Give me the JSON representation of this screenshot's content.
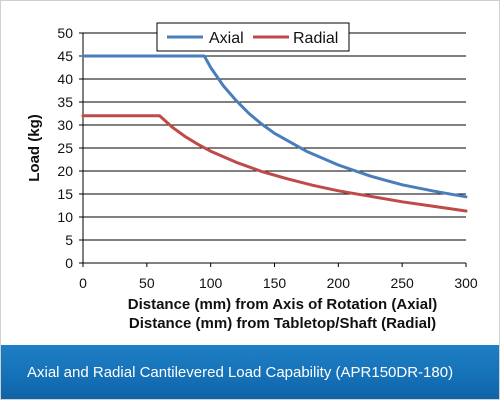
{
  "chart_data": {
    "type": "line",
    "title": "",
    "xlabel_lines": [
      "Distance (mm) from Axis of Rotation (Axial)",
      "Distance (mm) from Tabletop/Shaft (Radial)"
    ],
    "ylabel": "Load (kg)",
    "xlim": [
      0,
      300
    ],
    "ylim": [
      0,
      50
    ],
    "xticks": [
      0,
      50,
      100,
      150,
      200,
      250,
      300
    ],
    "yticks": [
      0,
      5,
      10,
      15,
      20,
      25,
      30,
      35,
      40,
      45,
      50
    ],
    "grid": "horizontal",
    "legend_position": "top-center",
    "series": [
      {
        "name": "Axial",
        "color": "#4a7ebb",
        "x": [
          0,
          95,
          100,
          110,
          120,
          130,
          140,
          150,
          175,
          200,
          225,
          250,
          275,
          300
        ],
        "y": [
          45,
          45,
          42.5,
          38.5,
          35.3,
          32.5,
          30.2,
          28.2,
          24.3,
          21.3,
          18.9,
          17.0,
          15.6,
          14.4
        ]
      },
      {
        "name": "Radial",
        "color": "#be4b48",
        "x": [
          0,
          60,
          70,
          80,
          90,
          100,
          120,
          140,
          160,
          180,
          200,
          225,
          250,
          275,
          300
        ],
        "y": [
          32,
          32,
          29.5,
          27.5,
          25.8,
          24.3,
          21.9,
          19.9,
          18.3,
          16.9,
          15.7,
          14.5,
          13.3,
          12.3,
          11.3
        ]
      }
    ]
  },
  "caption": "Axial and Radial Cantilevered Load Capability (APR150DR-180)"
}
